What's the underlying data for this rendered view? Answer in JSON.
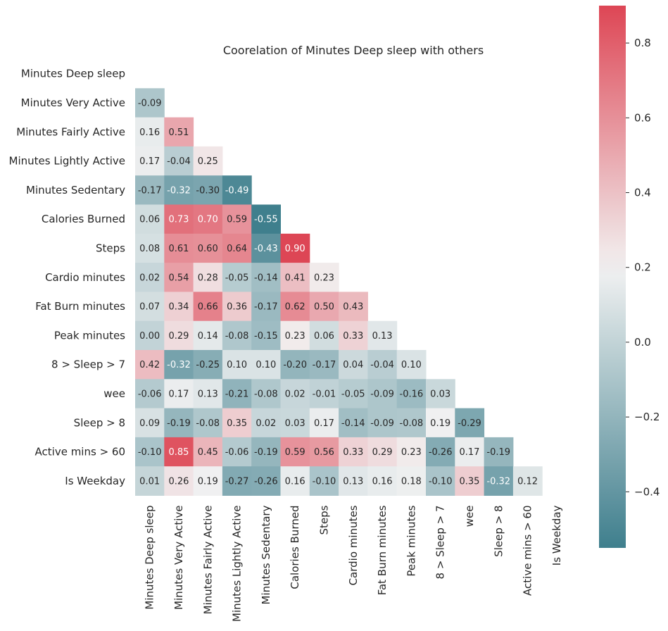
{
  "chart_data": {
    "type": "heatmap",
    "title": "Coorelation of Minutes Deep sleep with others",
    "xlabel": "",
    "ylabel": "",
    "mask": "lower-triangle (strict)",
    "variables": [
      "Minutes Deep sleep",
      "Minutes Very Active",
      "Minutes Fairly Active",
      "Minutes Lightly Active",
      "Minutes Sedentary",
      "Calories Burned",
      "Steps",
      "Cardio minutes",
      "Fat Burn minutes",
      "Peak minutes",
      "8 > Sleep > 7",
      "wee",
      "Sleep > 8",
      "Active mins > 60",
      "Is Weekday"
    ],
    "values": [
      [],
      [
        -0.09
      ],
      [
        0.16,
        0.51
      ],
      [
        0.17,
        -0.04,
        0.25
      ],
      [
        -0.17,
        -0.32,
        -0.3,
        -0.49
      ],
      [
        0.06,
        0.73,
        0.7,
        0.59,
        -0.55
      ],
      [
        0.08,
        0.61,
        0.6,
        0.64,
        -0.43,
        0.9
      ],
      [
        0.02,
        0.54,
        0.28,
        -0.05,
        -0.14,
        0.41,
        0.23
      ],
      [
        0.07,
        0.34,
        0.66,
        0.36,
        -0.17,
        0.62,
        0.5,
        0.43
      ],
      [
        0.0,
        0.29,
        0.14,
        -0.08,
        -0.15,
        0.23,
        0.06,
        0.33,
        0.13
      ],
      [
        0.42,
        -0.32,
        -0.25,
        0.1,
        0.1,
        -0.2,
        -0.17,
        0.04,
        -0.04,
        0.1
      ],
      [
        -0.06,
        0.17,
        0.13,
        -0.21,
        -0.08,
        0.02,
        -0.01,
        -0.05,
        -0.09,
        -0.16,
        0.03
      ],
      [
        0.09,
        -0.19,
        -0.08,
        0.35,
        0.02,
        0.03,
        0.17,
        -0.14,
        -0.09,
        -0.08,
        0.19,
        -0.29
      ],
      [
        -0.1,
        0.85,
        0.45,
        -0.06,
        -0.19,
        0.59,
        0.56,
        0.33,
        0.29,
        0.23,
        -0.26,
        0.17,
        -0.19
      ],
      [
        0.01,
        0.26,
        0.19,
        -0.27,
        -0.26,
        0.16,
        -0.1,
        0.13,
        0.16,
        0.18,
        -0.1,
        0.35,
        -0.32,
        0.12
      ]
    ],
    "colorbar": {
      "vmin": -0.55,
      "vmax": 0.9,
      "center": 0.2,
      "ticks": [
        -0.4,
        -0.2,
        0.0,
        0.2,
        0.4,
        0.6,
        0.8
      ],
      "tick_labels": [
        "−0.4",
        "−0.2",
        "0.0",
        "0.2",
        "0.4",
        "0.6",
        "0.8"
      ],
      "low_color": "#3f7f8d",
      "mid_color": "#f2f2f2",
      "high_color": "#dc3a4a"
    }
  }
}
